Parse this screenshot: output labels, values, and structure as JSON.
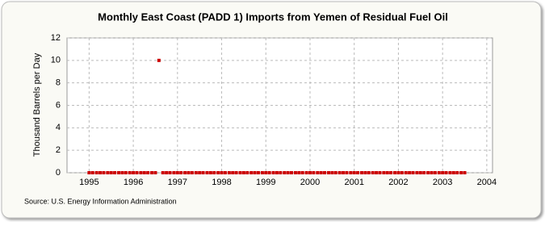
{
  "chart_data": {
    "type": "scatter",
    "title": "Monthly East Coast (PADD 1) Imports from Yemen of Residual Fuel Oil",
    "y_label": "Thousand Barrels per Day",
    "source": "Source: U.S. Energy Information Administration",
    "x": [
      1995,
      1995.08,
      1995.17,
      1995.25,
      1995.33,
      1995.42,
      1995.5,
      1995.58,
      1995.67,
      1995.75,
      1995.83,
      1995.92,
      1996,
      1996.08,
      1996.17,
      1996.25,
      1996.33,
      1996.42,
      1996.5,
      1996.58,
      1996.67,
      1996.75,
      1996.83,
      1996.92,
      1997,
      1997.08,
      1997.17,
      1997.25,
      1997.33,
      1997.42,
      1997.5,
      1997.58,
      1997.67,
      1997.75,
      1997.83,
      1997.92,
      1998,
      1998.08,
      1998.17,
      1998.25,
      1998.33,
      1998.42,
      1998.5,
      1998.58,
      1998.67,
      1998.75,
      1998.83,
      1998.92,
      1999,
      1999.08,
      1999.17,
      1999.25,
      1999.33,
      1999.42,
      1999.5,
      1999.58,
      1999.67,
      1999.75,
      1999.83,
      1999.92,
      2000,
      2000.08,
      2000.17,
      2000.25,
      2000.33,
      2000.42,
      2000.5,
      2000.58,
      2000.67,
      2000.75,
      2000.83,
      2000.92,
      2001,
      2001.08,
      2001.17,
      2001.25,
      2001.33,
      2001.42,
      2001.5,
      2001.58,
      2001.67,
      2001.75,
      2001.83,
      2001.92,
      2002,
      2002.08,
      2002.17,
      2002.25,
      2002.33,
      2002.42,
      2002.5,
      2002.58,
      2002.67,
      2002.75,
      2002.83,
      2002.92,
      2003,
      2003.08,
      2003.17,
      2003.25,
      2003.33,
      2003.42,
      2003.5
    ],
    "series": [
      {
        "name": "Imports",
        "color": "#cc0000",
        "values": [
          0,
          0,
          0,
          0,
          0,
          0,
          0,
          0,
          0,
          0,
          0,
          0,
          0,
          0,
          0,
          0,
          0,
          0,
          0,
          10,
          0,
          0,
          0,
          0,
          0,
          0,
          0,
          0,
          0,
          0,
          0,
          0,
          0,
          0,
          0,
          0,
          0,
          0,
          0,
          0,
          0,
          0,
          0,
          0,
          0,
          0,
          0,
          0,
          0,
          0,
          0,
          0,
          0,
          0,
          0,
          0,
          0,
          0,
          0,
          0,
          0,
          0,
          0,
          0,
          0,
          0,
          0,
          0,
          0,
          0,
          0,
          0,
          0,
          0,
          0,
          0,
          0,
          0,
          0,
          0,
          0,
          0,
          0,
          0,
          0,
          0,
          0,
          0,
          0,
          0,
          0,
          0,
          0,
          0,
          0,
          0,
          0,
          0,
          0,
          0,
          0,
          0,
          0
        ]
      }
    ],
    "xlim": [
      1994.5,
      2004.13
    ],
    "xticks": [
      1995,
      1996,
      1997,
      1998,
      1999,
      2000,
      2001,
      2002,
      2003,
      2004
    ],
    "ylim": [
      0,
      12
    ],
    "yticks": [
      0,
      2,
      4,
      6,
      8,
      10,
      12
    ],
    "grid": true
  }
}
